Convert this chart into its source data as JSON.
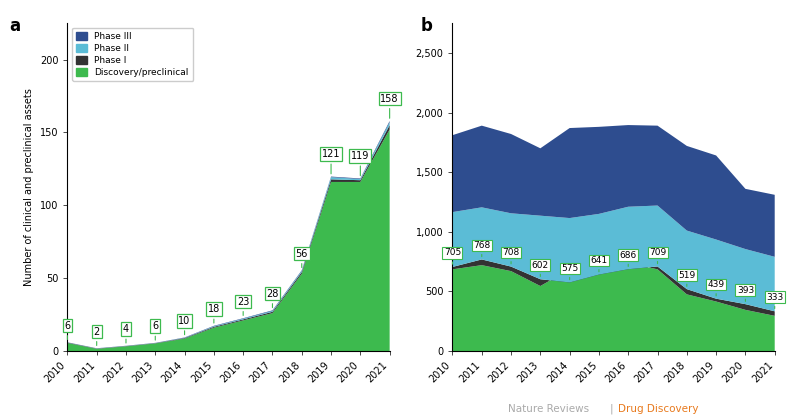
{
  "years": [
    2010,
    2011,
    2012,
    2013,
    2014,
    2015,
    2016,
    2017,
    2018,
    2019,
    2020,
    2021
  ],
  "panel_a": {
    "discovery": [
      5.5,
      1.5,
      3.2,
      5.2,
      8.5,
      16,
      21,
      26,
      53,
      116,
      116,
      152
    ],
    "phase1": [
      0.3,
      0.2,
      0.2,
      0.2,
      0.4,
      0.6,
      0.7,
      0.9,
      1.2,
      1.8,
      1.2,
      3.0
    ],
    "phase2": [
      0.1,
      0.1,
      0.1,
      0.1,
      0.2,
      0.4,
      0.5,
      0.6,
      0.8,
      1.5,
      0.8,
      2.0
    ],
    "phase3": [
      0.1,
      0.1,
      0.1,
      0.1,
      0.2,
      0.3,
      0.3,
      0.4,
      0.4,
      0.4,
      0.4,
      0.8
    ],
    "labels": [
      6,
      2,
      4,
      6,
      10,
      18,
      23,
      28,
      56,
      121,
      119,
      158
    ],
    "ylim": [
      0,
      225
    ],
    "yticks": [
      0,
      50,
      100,
      150,
      200
    ],
    "ylabel": "Number of clinical and preclinical assets"
  },
  "panel_b": {
    "disc": [
      685,
      720,
      670,
      545,
      685,
      755,
      740,
      685,
      475,
      415,
      345,
      295
    ],
    "ph1_total": [
      705,
      768,
      708,
      602,
      575,
      641,
      686,
      709,
      519,
      439,
      393,
      333
    ],
    "ph2_total": [
      1165,
      1205,
      1155,
      1135,
      1115,
      1150,
      1210,
      1220,
      1010,
      935,
      855,
      790
    ],
    "ph3_total": [
      1810,
      1890,
      1820,
      1700,
      1870,
      1880,
      1895,
      1890,
      1720,
      1640,
      1360,
      1310
    ],
    "ph1_labels": [
      705,
      768,
      708,
      602,
      575,
      641,
      686,
      709,
      519,
      439,
      393,
      333
    ],
    "ylim": [
      0,
      2750
    ],
    "yticks": [
      0,
      500,
      1000,
      1500,
      2000,
      2500
    ]
  },
  "colors": {
    "phase3": "#2e4d8f",
    "phase2": "#5bbcd6",
    "phase1": "#333333",
    "discovery": "#3dba4e"
  },
  "bg_color": "#ffffff",
  "footer_gray": "#aaaaaa",
  "footer_orange": "#e87a1e"
}
